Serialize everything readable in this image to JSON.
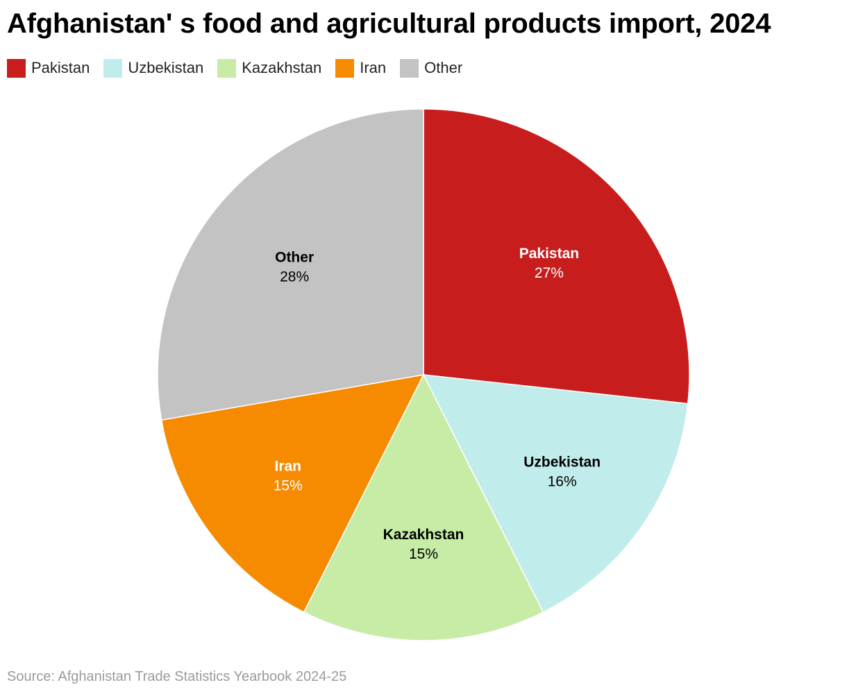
{
  "title": "Afghanistan' s food and agricultural products import, 2024",
  "source": "Source: Afghanistan Trade Statistics Yearbook 2024-25",
  "chart_data": {
    "type": "pie",
    "title": "Afghanistan' s food and agricultural products import, 2024",
    "legend_position": "top-left",
    "slices": [
      {
        "name": "Pakistan",
        "value": 27,
        "label": "27%",
        "color": "#c81d1d",
        "text_color": "#ffffff"
      },
      {
        "name": "Uzbekistan",
        "value": 16,
        "label": "16%",
        "color": "#c1ecec",
        "text_color": "#000000"
      },
      {
        "name": "Kazakhstan",
        "value": 15,
        "label": "15%",
        "color": "#c6eca6",
        "text_color": "#000000"
      },
      {
        "name": "Iran",
        "value": 15,
        "label": "15%",
        "color": "#f68b02",
        "text_color": "#ffffff"
      },
      {
        "name": "Other",
        "value": 28,
        "label": "28%",
        "color": "#c3c3c3",
        "text_color": "#000000"
      }
    ]
  }
}
